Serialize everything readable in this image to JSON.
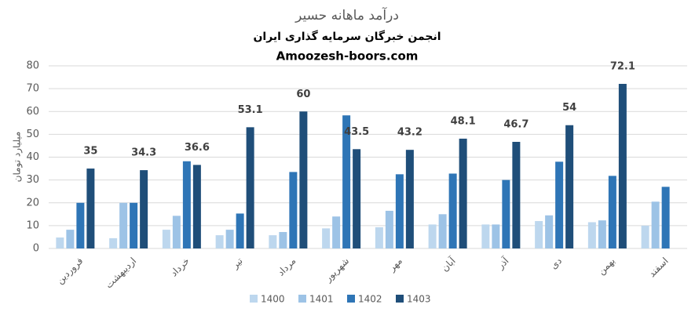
{
  "chart_data": {
    "type": "bar",
    "title": "درآمد ماهانه حسیر",
    "subtitle": "انجمن خبرگان سرمایه گذاری ایران",
    "source": "Amoozesh-boors.com",
    "y_label": "میلیارد تومان",
    "categories": [
      "فروردین",
      "اردیبهشت",
      "خرداد",
      "تیر",
      "مرداد",
      "شهریور",
      "مهر",
      "آبان",
      "آذر",
      "دی",
      "بهمن",
      "اسفند"
    ],
    "series": [
      {
        "name": "1400",
        "color": "#bdd7ee",
        "values": [
          4.8,
          4.5,
          8.2,
          5.8,
          5.8,
          8.8,
          9.3,
          10.5,
          10.5,
          12,
          11.5,
          10
        ]
      },
      {
        "name": "1401",
        "color": "#9dc3e6",
        "values": [
          8.2,
          20,
          14.3,
          8.2,
          7.2,
          14,
          16.5,
          15,
          10.5,
          14.5,
          12.3,
          20.5
        ]
      },
      {
        "name": "1402",
        "color": "#2e75b6",
        "values": [
          20,
          20,
          38.2,
          15.3,
          33.5,
          58.3,
          32.5,
          32.8,
          30,
          38,
          31.8,
          27
        ]
      },
      {
        "name": "1403",
        "color": "#1f4e79",
        "values": [
          35,
          34.3,
          36.6,
          53.1,
          60,
          43.5,
          43.2,
          48.1,
          46.7,
          54,
          72.1,
          null
        ]
      }
    ],
    "labeled_series": 3,
    "ylim": [
      0,
      80
    ],
    "yticks": [
      0,
      10,
      20,
      30,
      40,
      50,
      60,
      70,
      80
    ],
    "grid": true,
    "legend": "bottom"
  }
}
